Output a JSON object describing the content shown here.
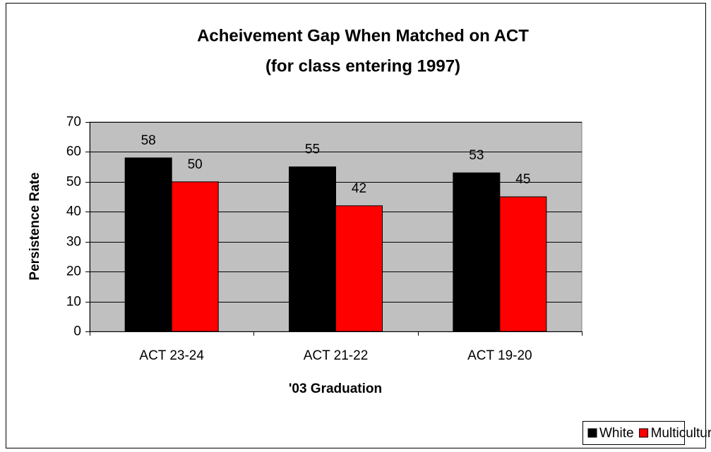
{
  "chart_data": {
    "type": "bar",
    "title": "Acheivement Gap When Matched on ACT",
    "subtitle": "(for class entering 1997)",
    "x_label": "'03 Graduation",
    "y_label": "Persistence Rate",
    "categories": [
      "ACT 23-24",
      "ACT 21-22",
      "ACT 19-20"
    ],
    "series": [
      {
        "name": "White",
        "color": "#000000",
        "values": [
          58,
          55,
          53
        ]
      },
      {
        "name": "Multicultural",
        "color": "#ff0000",
        "values": [
          50,
          42,
          45
        ]
      }
    ],
    "ylim": [
      0,
      70
    ],
    "yticks": [
      0,
      10,
      20,
      30,
      40,
      50,
      60,
      70
    ],
    "grid": true,
    "legend": "bottom-right",
    "plot_background": "#c0c0c0"
  }
}
